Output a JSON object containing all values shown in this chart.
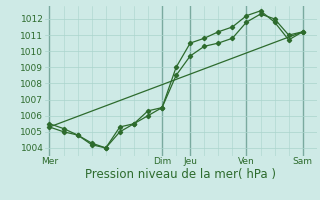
{
  "bg_color": "#ceeae6",
  "grid_color": "#aad4cc",
  "line_color": "#2d6b2d",
  "marker_color": "#2d6b2d",
  "ylabel_ticks": [
    1004,
    1005,
    1006,
    1007,
    1008,
    1009,
    1010,
    1011,
    1012
  ],
  "ylim": [
    1003.5,
    1012.8
  ],
  "xlim": [
    -2,
    114
  ],
  "xlabel": "Pression niveau de la mer( hPa )",
  "xlabel_fontsize": 8.5,
  "tick_fontsize": 6.5,
  "day_labels": [
    "Mer",
    "Dim",
    "Jeu",
    "Ven",
    "Sam"
  ],
  "day_positions": [
    0,
    48,
    60,
    84,
    108
  ],
  "series1_x": [
    0,
    6,
    12,
    18,
    24,
    30,
    36,
    42,
    48,
    54,
    60,
    66,
    72,
    78,
    84,
    90,
    96,
    102,
    108
  ],
  "series1_y": [
    1005.3,
    1005.0,
    1004.8,
    1004.2,
    1004.0,
    1005.3,
    1005.5,
    1006.3,
    1006.5,
    1008.5,
    1009.7,
    1010.3,
    1010.5,
    1010.8,
    1011.8,
    1012.3,
    1012.0,
    1011.0,
    1011.2
  ],
  "series2_x": [
    0,
    6,
    12,
    18,
    24,
    30,
    36,
    42,
    48,
    54,
    60,
    66,
    72,
    78,
    84,
    90,
    96,
    102,
    108
  ],
  "series2_y": [
    1005.5,
    1005.2,
    1004.8,
    1004.3,
    1004.0,
    1005.0,
    1005.5,
    1006.0,
    1006.5,
    1009.0,
    1010.5,
    1010.8,
    1011.2,
    1011.5,
    1012.2,
    1012.5,
    1011.8,
    1010.7,
    1011.2
  ],
  "series3_x": [
    0,
    108
  ],
  "series3_y": [
    1005.3,
    1011.2
  ]
}
